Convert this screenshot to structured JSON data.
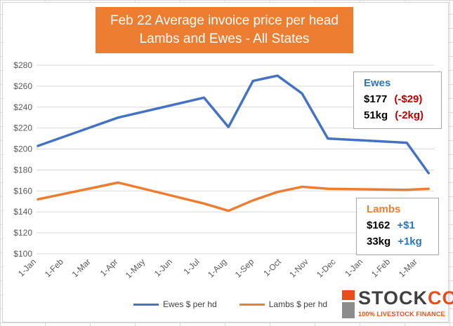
{
  "title_lines": [
    "Feb 22 Average invoice price per head",
    "Lambs and Ewes - All States"
  ],
  "chart_data": {
    "type": "line",
    "title": "Feb 22 Average invoice price per head Lambs and Ewes - All States",
    "categories": [
      "1-Jan",
      "1-Feb",
      "1-Mar",
      "1-Apr",
      "1-May",
      "1-Jun",
      "1-Jul",
      "1-Aug",
      "1-Sep",
      "1-Oct",
      "1-Nov",
      "1-Dec",
      "1-Jan",
      "1-Feb",
      "1-Mar"
    ],
    "x_positions": [
      0,
      1,
      2,
      3,
      4,
      5,
      6,
      7,
      8,
      9,
      10,
      11,
      12,
      13,
      14
    ],
    "series": [
      {
        "name": "Ewes $ per hd",
        "color": "#4472c4",
        "points": [
          [
            0.05,
            203
          ],
          [
            3.0,
            230
          ],
          [
            6.15,
            249
          ],
          [
            7.05,
            221
          ],
          [
            7.95,
            265
          ],
          [
            8.85,
            270
          ],
          [
            9.75,
            253
          ],
          [
            10.7,
            210
          ],
          [
            13.6,
            206
          ],
          [
            14.4,
            177
          ]
        ]
      },
      {
        "name": "Lambs $ per hd",
        "color": "#ed7d31",
        "points": [
          [
            0.05,
            152
          ],
          [
            3.0,
            168
          ],
          [
            6.15,
            148
          ],
          [
            7.05,
            141
          ],
          [
            7.95,
            151
          ],
          [
            8.85,
            159
          ],
          [
            9.75,
            164
          ],
          [
            10.7,
            162
          ],
          [
            13.6,
            161
          ],
          [
            14.4,
            162
          ]
        ]
      }
    ],
    "ylim": [
      100,
      280
    ],
    "yticks": [
      100,
      120,
      140,
      160,
      180,
      200,
      220,
      240,
      260,
      280
    ],
    "ytick_labels": [
      "$100",
      "$120",
      "$140",
      "$160",
      "$180",
      "$200",
      "$220",
      "$240",
      "$260",
      "$280"
    ],
    "grid": true,
    "legend_position": "bottom"
  },
  "ewes_callout": {
    "heading": "Ewes",
    "price": "$177",
    "price_change": "(-$29)",
    "weight": "51kg",
    "weight_change": "(-2kg)"
  },
  "lambs_callout": {
    "heading": "Lambs",
    "price": "$162",
    "price_change": "+$1",
    "weight": "33kg",
    "weight_change": "+1kg"
  },
  "legend": {
    "ewes_label": "Ewes $ per hd",
    "lambs_label": "Lambs $ per hd"
  },
  "logo": {
    "brand_main": "STOCK",
    "brand_accent": "CO",
    "tagline": "100% LIVESTOCK FINANCE"
  },
  "colors": {
    "ewes": "#4472c4",
    "lambs": "#ed7d31",
    "title_bg": "#ed7d31",
    "negative": "#c00000",
    "positive": "#2e75b6"
  }
}
